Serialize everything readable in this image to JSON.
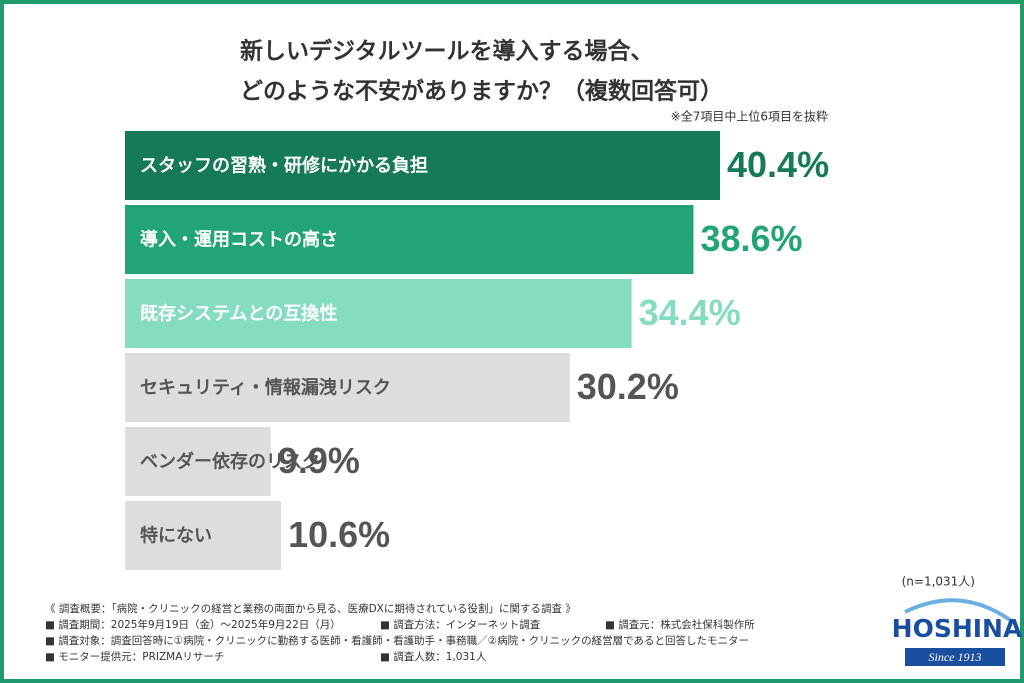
{
  "chart_data": {
    "type": "hbar",
    "title": [
      "新しいデジタルツールを導入する場合、",
      "どのような不安がありますか？（複数回答可）"
    ],
    "note": "※全7項目中上位6項目を抜粋",
    "categories": [
      "スタッフの習熟・研修にかかる負担",
      "導入・運用コストの高さ",
      "既存システムとの互換性",
      "セキュリティ・情報漏洩リスク",
      "ベンダー依存のリスク",
      "特にない"
    ],
    "values": [
      40.4,
      38.6,
      34.4,
      30.2,
      9.9,
      10.6
    ],
    "value_labels": [
      "40.4%",
      "38.6%",
      "34.4%",
      "30.2%",
      "9.9%",
      "10.6%"
    ],
    "colors": [
      "#167a58",
      "#22a476",
      "#86dcc0",
      "#dddddd",
      "#dddddd",
      "#dddddd"
    ],
    "label_colors": [
      "#ffffff",
      "#ffffff",
      "#ffffff",
      "#555555",
      "#555555",
      "#555555"
    ],
    "value_label_colors": [
      "#167a58",
      "#22a476",
      "#86dcc0",
      "#555555",
      "#555555",
      "#555555"
    ],
    "sample_size": "(n=1,031人)"
  },
  "footer": {
    "rows": [
      [
        "《 調査概要：「病院・クリニックの経営と業務の両面から見る、医療DXに期待されている役割」に関する調査 》"
      ],
      [
        "■ 調査期間：2025年9月19日（金）〜2025年9月22日（月）",
        "■ 調査方法：インターネット調査",
        "■ 調査元：株式会社保科製作所"
      ],
      [
        "■ 調査対象：調査回答時に①病院・クリニックに勤務する医師・看護師・看護助手・事務職／②病院・クリニックの経営層であると回答したモニター"
      ],
      [
        "■ モニター提供元：PRIZMAリサーチ",
        "■ 調査人数：1,031人"
      ]
    ]
  },
  "logo": {
    "name": "HOSHINA",
    "tagline": "Since 1913"
  }
}
